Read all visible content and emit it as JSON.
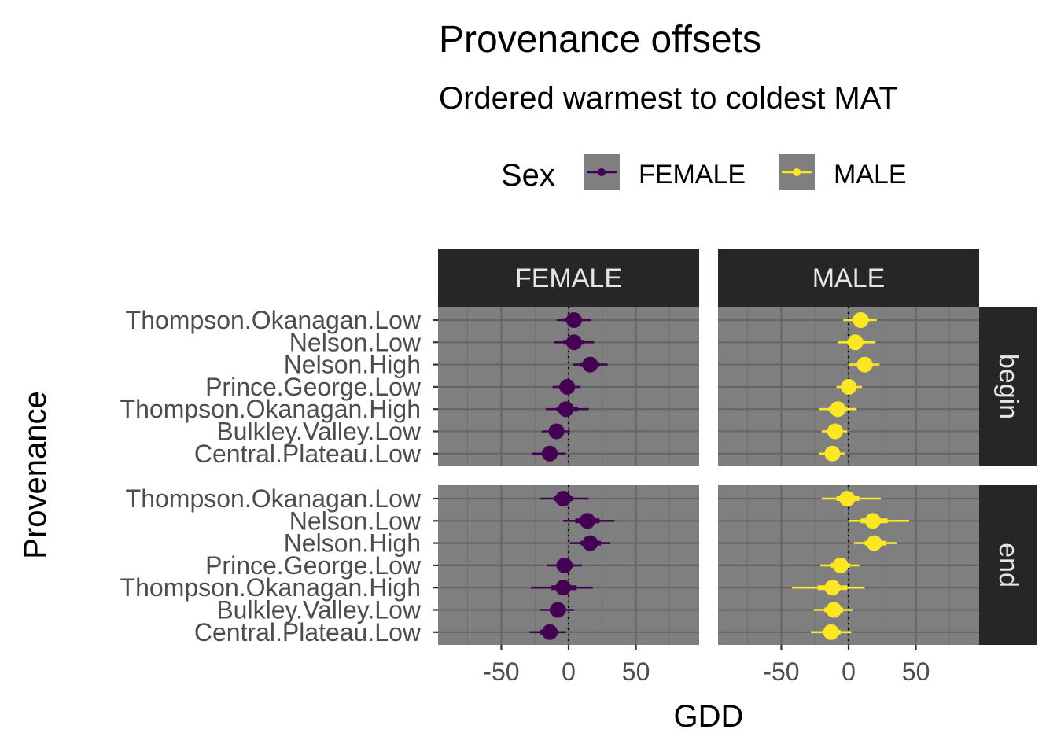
{
  "chart_data": {
    "type": "scatter",
    "title": "Provenance offsets",
    "subtitle": "Ordered warmest to coldest MAT",
    "xlabel": "GDD",
    "ylabel": "Provenance",
    "legend": {
      "title": "Sex",
      "position": "top",
      "entries": [
        {
          "label": "FEMALE",
          "color": "#440154"
        },
        {
          "label": "MALE",
          "color": "#fde725"
        }
      ]
    },
    "columns": [
      "FEMALE",
      "MALE"
    ],
    "rows": [
      "begin",
      "end"
    ],
    "categories": [
      "Thompson.Okanagan.Low",
      "Nelson.Low",
      "Nelson.High",
      "Prince.George.Low",
      "Thompson.Okanagan.High",
      "Bulkley.Valley.Low",
      "Central.Plateau.Low"
    ],
    "x_ticks": [
      -50,
      0,
      50
    ],
    "x_tick_labels": [
      "-50",
      "0",
      "50"
    ],
    "xlim": [
      -97,
      97
    ],
    "reference_line_x": 0,
    "grid": true,
    "panel_background": "#7f7f7f",
    "strip_background": "#262626",
    "series": [
      {
        "name": "FEMALE",
        "row": "begin",
        "color": "#440154",
        "points": [
          {
            "estimate": 4,
            "lo50": -3,
            "hi50": 10,
            "lo90": -9,
            "hi90": 17
          },
          {
            "estimate": 4,
            "lo50": -4,
            "hi50": 12,
            "lo90": -11,
            "hi90": 19
          },
          {
            "estimate": 16,
            "lo50": 9,
            "hi50": 23,
            "lo90": 3,
            "hi90": 29
          },
          {
            "estimate": -1,
            "lo50": -7,
            "hi50": 4,
            "lo90": -12,
            "hi90": 9
          },
          {
            "estimate": -2,
            "lo50": -9,
            "hi50": 7,
            "lo90": -17,
            "hi90": 15
          },
          {
            "estimate": -9,
            "lo50": -14,
            "hi50": -4,
            "lo90": -20,
            "hi90": 1
          },
          {
            "estimate": -14,
            "lo50": -20,
            "hi50": -8,
            "lo90": -27,
            "hi90": -2
          }
        ]
      },
      {
        "name": "MALE",
        "row": "begin",
        "color": "#fde725",
        "points": [
          {
            "estimate": 9,
            "lo50": 3,
            "hi50": 15,
            "lo90": -4,
            "hi90": 21
          },
          {
            "estimate": 5,
            "lo50": -1,
            "hi50": 12,
            "lo90": -8,
            "hi90": 20
          },
          {
            "estimate": 12,
            "lo50": 6,
            "hi50": 18,
            "lo90": 0,
            "hi90": 23
          },
          {
            "estimate": 0,
            "lo50": -5,
            "hi50": 5,
            "lo90": -9,
            "hi90": 10
          },
          {
            "estimate": -8,
            "lo50": -15,
            "hi50": -1,
            "lo90": -22,
            "hi90": 6
          },
          {
            "estimate": -10,
            "lo50": -15,
            "hi50": -5,
            "lo90": -20,
            "hi90": -1
          },
          {
            "estimate": -12,
            "lo50": -17,
            "hi50": -7,
            "lo90": -22,
            "hi90": -3
          }
        ]
      },
      {
        "name": "FEMALE",
        "row": "end",
        "color": "#440154",
        "points": [
          {
            "estimate": -4,
            "lo50": -11,
            "hi50": 3,
            "lo90": -21,
            "hi90": 15
          },
          {
            "estimate": 14,
            "lo50": 5,
            "hi50": 23,
            "lo90": -4,
            "hi90": 34
          },
          {
            "estimate": 16,
            "lo50": 9,
            "hi50": 24,
            "lo90": 1,
            "hi90": 31
          },
          {
            "estimate": -3,
            "lo50": -9,
            "hi50": 3,
            "lo90": -16,
            "hi90": 10
          },
          {
            "estimate": -4,
            "lo50": -13,
            "hi50": 6,
            "lo90": -28,
            "hi90": 18
          },
          {
            "estimate": -8,
            "lo50": -14,
            "hi50": -2,
            "lo90": -21,
            "hi90": 4
          },
          {
            "estimate": -14,
            "lo50": -21,
            "hi50": -8,
            "lo90": -29,
            "hi90": -2
          }
        ]
      },
      {
        "name": "MALE",
        "row": "end",
        "color": "#fde725",
        "points": [
          {
            "estimate": -1,
            "lo50": -9,
            "hi50": 8,
            "lo90": -20,
            "hi90": 24
          },
          {
            "estimate": 18,
            "lo50": 9,
            "hi50": 29,
            "lo90": 0,
            "hi90": 45
          },
          {
            "estimate": 19,
            "lo50": 12,
            "hi50": 28,
            "lo90": 4,
            "hi90": 36
          },
          {
            "estimate": -6,
            "lo50": -13,
            "hi50": 1,
            "lo90": -21,
            "hi90": 8
          },
          {
            "estimate": -12,
            "lo50": -23,
            "hi50": -1,
            "lo90": -42,
            "hi90": 12
          },
          {
            "estimate": -11,
            "lo50": -18,
            "hi50": -4,
            "lo90": -26,
            "hi90": 3
          },
          {
            "estimate": -13,
            "lo50": -19,
            "hi50": -6,
            "lo90": -28,
            "hi90": 2
          }
        ]
      }
    ]
  }
}
